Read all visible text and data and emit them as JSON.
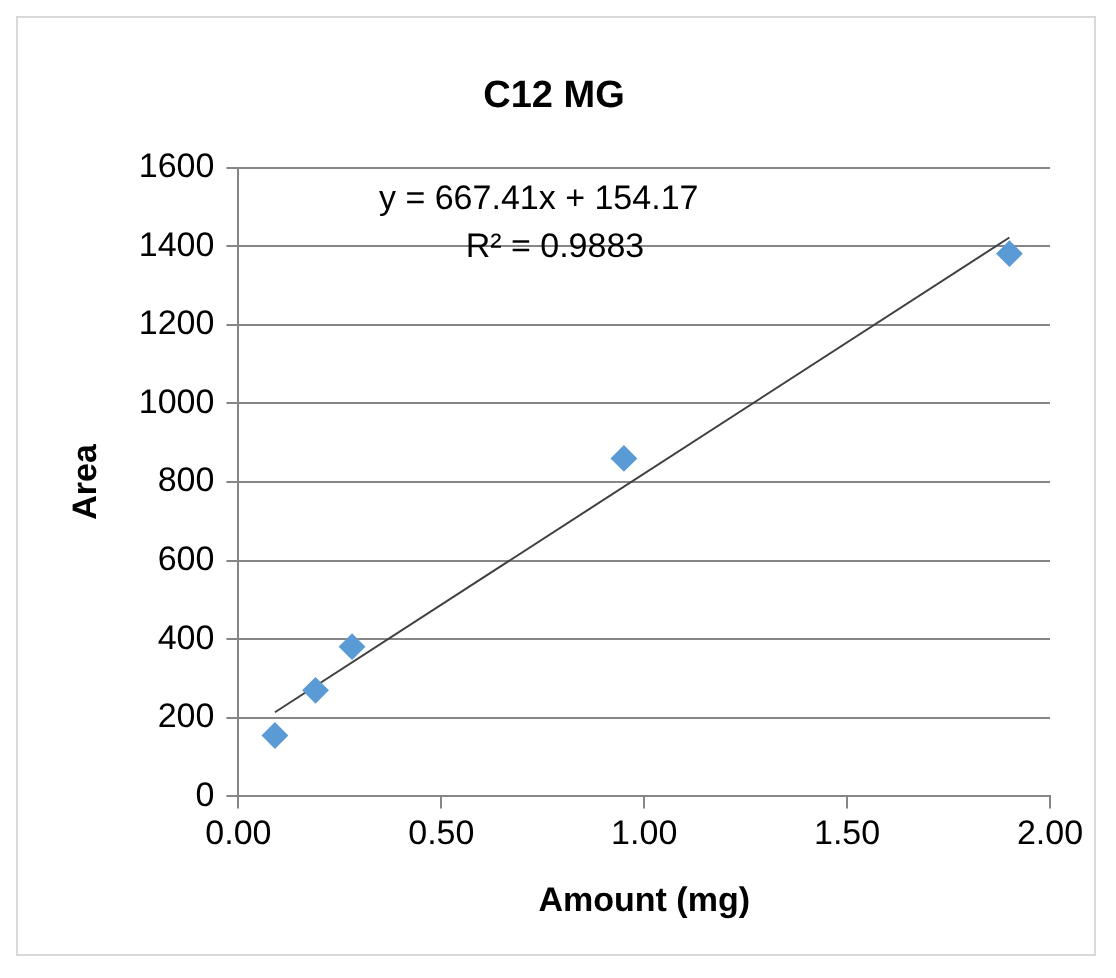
{
  "chart_data": {
    "type": "scatter",
    "title": "C12 MG",
    "xlabel": "Amount (mg)",
    "ylabel": "Area",
    "annotations": [
      "y = 667.41x + 154.17",
      "R² = 0.9883"
    ],
    "x": [
      0.09,
      0.19,
      0.28,
      0.95,
      1.9
    ],
    "series": [
      {
        "color": "#5b9bd5",
        "values": [
          155,
          270,
          381,
          860,
          1381
        ]
      },
      {
        "type": "line",
        "color": "#404040",
        "marker": "none",
        "x": [
          0.09,
          1.9
        ],
        "values": [
          214.2,
          1422.2
        ]
      }
    ],
    "marker": "diamond",
    "xlim": [
      0,
      2
    ],
    "xticks": [
      {
        "value": 0,
        "label": "0.00"
      },
      {
        "value": 0.5,
        "label": "0.50"
      },
      {
        "value": 1,
        "label": "1.00"
      },
      {
        "value": 1.5,
        "label": "1.50"
      },
      {
        "value": 2,
        "label": "2.00"
      }
    ],
    "ylim": [
      0,
      1600
    ],
    "yticks": [
      0,
      200,
      400,
      600,
      800,
      1000,
      1200,
      1400,
      1600
    ],
    "grid": "y"
  }
}
